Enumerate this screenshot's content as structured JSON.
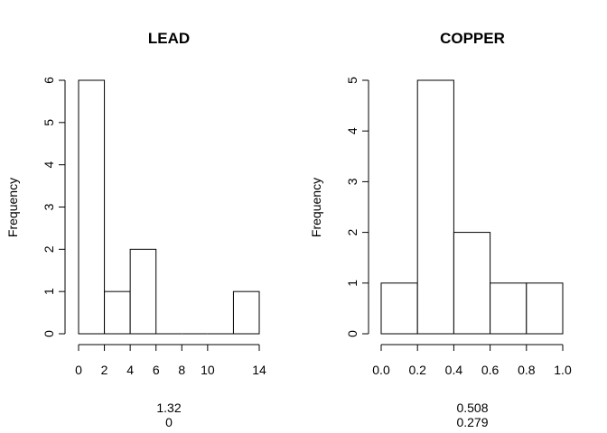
{
  "chart_data": [
    {
      "type": "bar",
      "title": "LEAD",
      "xlabel": "",
      "ylabel": "Frequency",
      "bins": [
        [
          0,
          2
        ],
        [
          2,
          4
        ],
        [
          4,
          6
        ],
        [
          6,
          8
        ],
        [
          8,
          10
        ],
        [
          10,
          12
        ],
        [
          12,
          14
        ]
      ],
      "values": [
        6,
        1,
        2,
        0,
        0,
        0,
        1
      ],
      "xlim": [
        0,
        14
      ],
      "ylim": [
        0,
        6
      ],
      "xticks": [
        0,
        2,
        4,
        6,
        8,
        10,
        14
      ],
      "yticks": [
        0,
        1,
        2,
        3,
        4,
        5,
        6
      ],
      "annotations": [
        "1.32",
        "0"
      ]
    },
    {
      "type": "bar",
      "title": "COPPER",
      "xlabel": "",
      "ylabel": "Frequency",
      "bins": [
        [
          0.0,
          0.2
        ],
        [
          0.2,
          0.4
        ],
        [
          0.4,
          0.6
        ],
        [
          0.6,
          0.8
        ],
        [
          0.8,
          1.0
        ]
      ],
      "values": [
        1,
        5,
        2,
        1,
        1
      ],
      "xlim": [
        0,
        1
      ],
      "ylim": [
        0,
        5
      ],
      "xticks": [
        0.0,
        0.2,
        0.4,
        0.6,
        0.8,
        1.0
      ],
      "xtick_labels": [
        "0.0",
        "0.2",
        "0.4",
        "0.6",
        "0.8",
        "1.0"
      ],
      "yticks": [
        0,
        1,
        2,
        3,
        4,
        5
      ],
      "annotations": [
        "0.508",
        "0.279"
      ]
    }
  ]
}
